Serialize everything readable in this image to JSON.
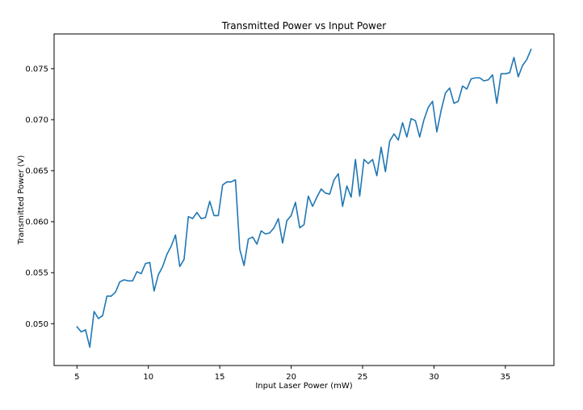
{
  "chart_data": {
    "type": "line",
    "title": "Transmitted Power vs Input Power",
    "xlabel": "Input Laser Power (mW)",
    "ylabel": "Transmitted Power (V)",
    "xlim": [
      3.4,
      38.4
    ],
    "ylim": [
      0.0459,
      0.0784
    ],
    "grid": false,
    "xticks": [
      5,
      10,
      15,
      20,
      25,
      30,
      35
    ],
    "yticks": [
      0.05,
      0.055,
      0.06,
      0.065,
      0.07,
      0.075
    ],
    "xtick_labels": [
      "5",
      "10",
      "15",
      "20",
      "25",
      "30",
      "35"
    ],
    "ytick_labels": [
      "0.050",
      "0.055",
      "0.060",
      "0.065",
      "0.070",
      "0.075"
    ],
    "line_color": "#1f77b4",
    "series": [
      {
        "x": [
          5.0,
          5.3,
          5.6,
          5.9,
          6.2,
          6.5,
          6.8,
          7.1,
          7.4,
          7.7,
          8.0,
          8.3,
          8.6,
          8.9,
          9.2,
          9.5,
          9.8,
          10.1,
          10.4,
          10.7,
          11.0,
          11.3,
          11.6,
          11.9,
          12.2,
          12.5,
          12.8,
          13.1,
          13.4,
          13.7,
          14.0,
          14.3,
          14.6,
          14.9,
          15.2,
          15.5,
          15.8,
          16.1,
          16.4,
          16.7,
          17.0,
          17.3,
          17.6,
          17.9,
          18.2,
          18.5,
          18.8,
          19.1,
          19.4,
          19.7,
          20.0,
          20.3,
          20.6,
          20.9,
          21.2,
          21.5,
          21.8,
          22.1,
          22.4,
          22.7,
          23.0,
          23.3,
          23.6,
          23.9,
          24.2,
          24.5,
          24.8,
          25.1,
          25.4,
          25.7,
          26.0,
          26.3,
          26.6,
          26.9,
          27.2,
          27.5,
          27.8,
          28.1,
          28.4,
          28.7,
          29.0,
          29.3,
          29.6,
          29.9,
          30.2,
          30.5,
          30.8,
          31.1,
          31.4,
          31.7,
          32.0,
          32.3,
          32.6,
          32.9,
          33.2,
          33.5,
          33.8,
          34.1,
          34.4,
          34.7,
          35.0,
          35.3,
          35.6,
          35.9,
          36.2,
          36.5,
          36.8
        ],
        "values": [
          0.0497,
          0.0492,
          0.0494,
          0.0477,
          0.0512,
          0.0505,
          0.0508,
          0.0527,
          0.0527,
          0.0531,
          0.0541,
          0.0543,
          0.0542,
          0.0542,
          0.0551,
          0.0549,
          0.0559,
          0.056,
          0.0532,
          0.0548,
          0.0556,
          0.0568,
          0.0576,
          0.0587,
          0.0556,
          0.0563,
          0.0605,
          0.0603,
          0.0609,
          0.0603,
          0.0604,
          0.062,
          0.0606,
          0.0606,
          0.0636,
          0.0639,
          0.0639,
          0.0641,
          0.0573,
          0.0557,
          0.0583,
          0.0585,
          0.0578,
          0.0591,
          0.0588,
          0.0589,
          0.0594,
          0.0603,
          0.0579,
          0.0601,
          0.0606,
          0.0619,
          0.0594,
          0.0597,
          0.0625,
          0.0615,
          0.0624,
          0.0632,
          0.0628,
          0.0627,
          0.0641,
          0.0647,
          0.0615,
          0.0635,
          0.0624,
          0.0661,
          0.0625,
          0.0661,
          0.0657,
          0.0661,
          0.0645,
          0.0673,
          0.0649,
          0.0679,
          0.0686,
          0.068,
          0.0697,
          0.0683,
          0.0701,
          0.0699,
          0.0683,
          0.07,
          0.0712,
          0.0718,
          0.0688,
          0.0709,
          0.0726,
          0.0731,
          0.0716,
          0.0718,
          0.0733,
          0.073,
          0.074,
          0.0741,
          0.0741,
          0.0738,
          0.0739,
          0.0744,
          0.0716,
          0.0745,
          0.0745,
          0.0746,
          0.0761,
          0.0742,
          0.0753,
          0.0759,
          0.0769
        ]
      }
    ]
  }
}
